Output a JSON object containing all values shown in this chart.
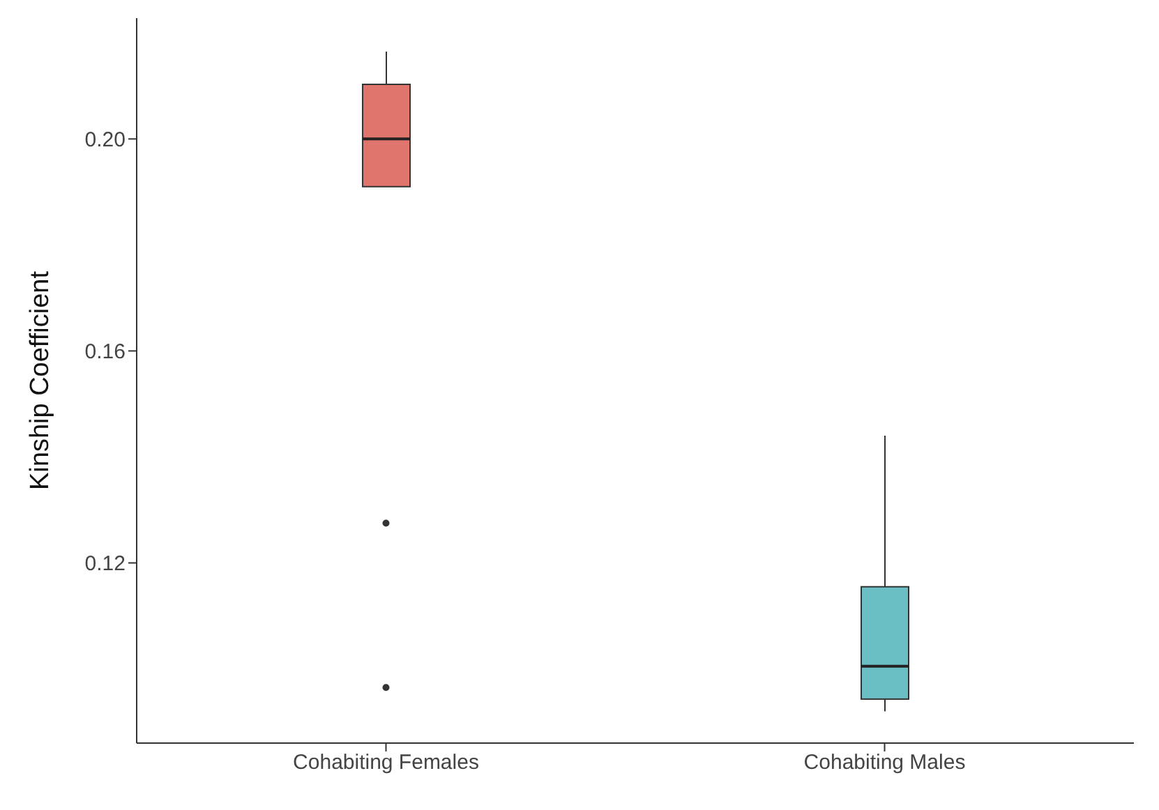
{
  "chart_data": {
    "type": "box",
    "ylabel": "Kinship Coefficient",
    "categories": [
      "Cohabiting Females",
      "Cohabiting Males"
    ],
    "colors": [
      "#df756c",
      "#6bbec4"
    ],
    "boxes": [
      {
        "low": 0.191,
        "q1": 0.191,
        "median": 0.2,
        "q3": 0.2103,
        "high": 0.2165,
        "outliers": [
          0.1275,
          0.0965
        ]
      },
      {
        "low": 0.092,
        "q1": 0.0943,
        "median": 0.1005,
        "q3": 0.1155,
        "high": 0.144
      }
    ],
    "ylim": [
      0.086,
      0.2228
    ],
    "yticks": [
      {
        "value": 0.12,
        "label": "0.12"
      },
      {
        "value": 0.16,
        "label": "0.16"
      },
      {
        "value": 0.2,
        "label": "0.20"
      }
    ],
    "grid": false
  }
}
